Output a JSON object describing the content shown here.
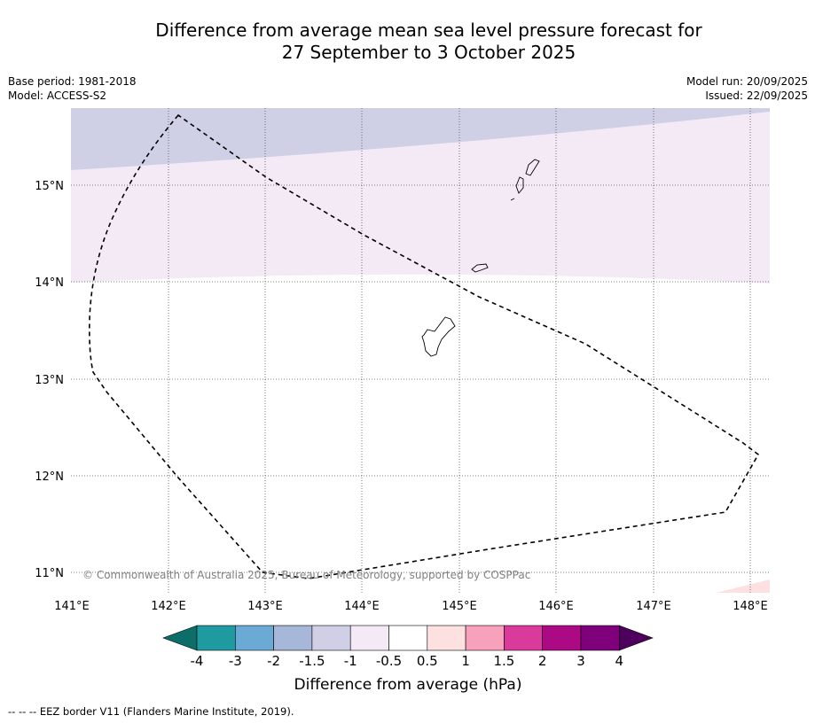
{
  "title": {
    "line1": "Difference from average mean sea level pressure forecast for",
    "line2": "27 September to 3 October 2025"
  },
  "meta": {
    "base_period": "Base period: 1981-2018",
    "model": "Model: ACCESS-S2",
    "model_run": "Model run: 20/09/2025",
    "issued": "Issued: 22/09/2025"
  },
  "map": {
    "lon_labels": [
      "141°E",
      "142°E",
      "143°E",
      "144°E",
      "145°E",
      "146°E",
      "147°E",
      "148°E"
    ],
    "lat_labels": [
      "15°N",
      "14°N",
      "13°N",
      "12°N",
      "11°N"
    ],
    "copyright": "© Commonwealth of Australia 2025, Bureau of Meteorology, supported by COSPPac"
  },
  "legend": {
    "tick_labels": [
      "-4",
      "-3",
      "-2",
      "-1.5",
      "-1",
      "-0.5",
      "0.5",
      "1",
      "1.5",
      "2",
      "3",
      "4"
    ],
    "colors": [
      "#0c6e68",
      "#1e9aa0",
      "#6aaad4",
      "#a6b7d9",
      "#cfd0e6",
      "#f3eaf5",
      "#ffffff",
      "#fde0e0",
      "#f8a1bb",
      "#da3a9c",
      "#ab0a84",
      "#7f007b",
      "#4d005c"
    ],
    "label": "Difference from average (hPa)"
  },
  "footnote": "--  --  -- EEZ border V11 (Flanders Marine Institute, 2019)."
}
